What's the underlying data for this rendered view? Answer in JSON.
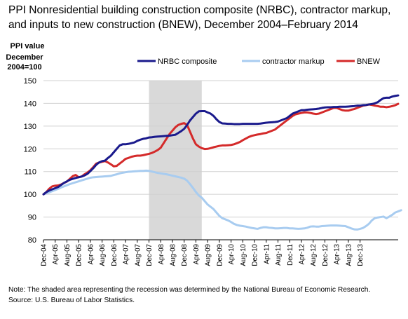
{
  "chart_data": {
    "type": "line",
    "title": "PPI Nonresidential building construction composite (NRBC), contractor markup, and inputs to new construction (BNEW), December 2004–February 2014",
    "ylabel_line1": "PPI value",
    "ylabel_line2": "December 2004=100",
    "ylim": [
      80,
      150
    ],
    "yticks": [
      "80",
      "90",
      "100",
      "110",
      "120",
      "130",
      "140",
      "150"
    ],
    "x_tick_labels": [
      "Dec-04",
      "Apr-05",
      "Aug-05",
      "Dec-05",
      "Apr-06",
      "Aug-06",
      "Dec-06",
      "Apr-07",
      "Aug-07",
      "Dec-07",
      "Apr-08",
      "Aug-08",
      "Dec-08",
      "Apr-09",
      "Aug-09",
      "Dec-09",
      "Apr-10",
      "Aug-10",
      "Dec-10",
      "Apr-11",
      "Aug-11",
      "Dec-11",
      "Apr-12",
      "Aug-12",
      "Dec-12",
      "Apr-13",
      "Aug-13",
      "Dec-13"
    ],
    "recession": {
      "start": "Dec-07",
      "end": "Jun-09"
    },
    "legend_position": "top",
    "grid": "horizontal",
    "series": [
      {
        "name": "NRBC composite",
        "color": "#1a1a8c",
        "values": [
          100.0,
          101.0,
          101.7,
          102.2,
          102.7,
          103.2,
          104.1,
          105.0,
          105.7,
          106.4,
          106.8,
          107.2,
          107.5,
          107.8,
          108.3,
          109.0,
          110.2,
          111.5,
          113.0,
          114.0,
          114.6,
          114.8,
          116.0,
          117.0,
          118.5,
          120.0,
          121.5,
          122.0,
          122.0,
          122.2,
          122.5,
          122.8,
          123.5,
          124.0,
          124.4,
          124.6,
          125.0,
          125.1,
          125.3,
          125.4,
          125.5,
          125.6,
          125.7,
          125.8,
          126.0,
          126.2,
          127.0,
          127.8,
          128.8,
          130.5,
          132.5,
          134.0,
          135.5,
          136.5,
          136.6,
          136.6,
          136.0,
          135.5,
          134.5,
          133.0,
          131.8,
          131.2,
          131.1,
          131.0,
          131.0,
          130.9,
          130.9,
          130.9,
          131.0,
          131.0,
          131.0,
          131.0,
          131.0,
          131.0,
          131.1,
          131.3,
          131.5,
          131.6,
          131.7,
          131.8,
          132.0,
          132.5,
          133.0,
          133.5,
          134.5,
          135.5,
          136.0,
          136.5,
          137.0,
          137.0,
          137.2,
          137.3,
          137.4,
          137.5,
          137.7,
          138.0,
          138.2,
          138.3,
          138.3,
          138.4,
          138.4,
          138.5,
          138.5,
          138.5,
          138.6,
          138.7,
          138.8,
          139.0,
          139.0,
          139.2,
          139.3,
          139.5,
          139.7,
          140.0,
          140.5,
          141.5,
          142.3,
          142.5,
          142.5,
          143.0,
          143.3,
          143.5
        ]
      },
      {
        "name": "contractor markup",
        "color": "#a8ccf0",
        "values": [
          100.0,
          100.4,
          100.9,
          101.4,
          101.9,
          102.4,
          103.0,
          103.5,
          104.0,
          104.5,
          104.9,
          105.3,
          105.7,
          106.1,
          106.5,
          106.9,
          107.3,
          107.5,
          107.6,
          107.7,
          107.8,
          107.9,
          108.0,
          108.1,
          108.5,
          108.8,
          109.2,
          109.5,
          109.7,
          109.9,
          110.0,
          110.1,
          110.2,
          110.3,
          110.3,
          110.4,
          110.3,
          110.0,
          109.7,
          109.4,
          109.2,
          109.0,
          108.8,
          108.5,
          108.2,
          107.9,
          107.6,
          107.3,
          106.9,
          106.0,
          104.5,
          102.8,
          101.0,
          99.5,
          98.5,
          97.0,
          95.5,
          94.5,
          93.5,
          92.0,
          90.5,
          89.5,
          89.0,
          88.5,
          87.8,
          87.0,
          86.5,
          86.2,
          86.0,
          85.8,
          85.5,
          85.2,
          85.0,
          84.8,
          85.2,
          85.5,
          85.5,
          85.3,
          85.2,
          85.0,
          85.0,
          85.1,
          85.2,
          85.2,
          85.0,
          85.0,
          84.9,
          84.8,
          84.9,
          85.0,
          85.3,
          85.8,
          85.9,
          85.8,
          85.8,
          86.0,
          86.1,
          86.2,
          86.3,
          86.3,
          86.3,
          86.2,
          86.1,
          86.0,
          85.5,
          85.0,
          84.6,
          84.5,
          84.8,
          85.2,
          86.0,
          87.0,
          88.5,
          89.5,
          89.8,
          90.0,
          90.2,
          89.5,
          90.2,
          91.0,
          92.0,
          92.5,
          93.0
        ]
      },
      {
        "name": "BNEW",
        "color": "#d42a2a",
        "values": [
          100.0,
          101.0,
          102.5,
          103.5,
          103.8,
          103.9,
          104.3,
          105.0,
          105.6,
          106.8,
          108.0,
          108.5,
          107.5,
          107.8,
          108.8,
          109.6,
          110.6,
          112.0,
          113.5,
          114.0,
          114.3,
          114.6,
          114.0,
          113.2,
          112.3,
          112.5,
          113.5,
          114.5,
          115.6,
          116.0,
          116.5,
          116.8,
          117.0,
          117.0,
          117.2,
          117.5,
          117.8,
          118.2,
          118.8,
          119.5,
          120.5,
          122.5,
          124.5,
          126.5,
          128.0,
          129.5,
          130.5,
          131.0,
          131.3,
          130.5,
          127.5,
          124.5,
          122.0,
          121.0,
          120.3,
          119.9,
          120.0,
          120.3,
          120.7,
          121.0,
          121.3,
          121.5,
          121.5,
          121.6,
          121.7,
          122.0,
          122.5,
          123.0,
          123.8,
          124.5,
          125.2,
          125.7,
          126.0,
          126.3,
          126.5,
          126.8,
          127.0,
          127.5,
          128.0,
          128.5,
          129.5,
          130.5,
          131.5,
          132.5,
          133.5,
          134.5,
          135.2,
          135.5,
          135.8,
          136.0,
          136.0,
          135.8,
          135.5,
          135.3,
          135.5,
          136.0,
          136.5,
          137.0,
          137.5,
          138.0,
          138.0,
          137.5,
          137.0,
          136.8,
          136.8,
          137.2,
          137.5,
          138.0,
          138.5,
          139.0,
          139.2,
          139.5,
          139.3,
          139.0,
          138.8,
          138.5,
          138.5,
          138.3,
          138.5,
          138.8,
          139.2,
          139.8
        ]
      }
    ]
  },
  "footer": {
    "note": "Note: The shaded area representing the recession was determined by the National Bureau of Economic Research.",
    "source": "Source: U.S. Bureau of Labor Statistics."
  }
}
